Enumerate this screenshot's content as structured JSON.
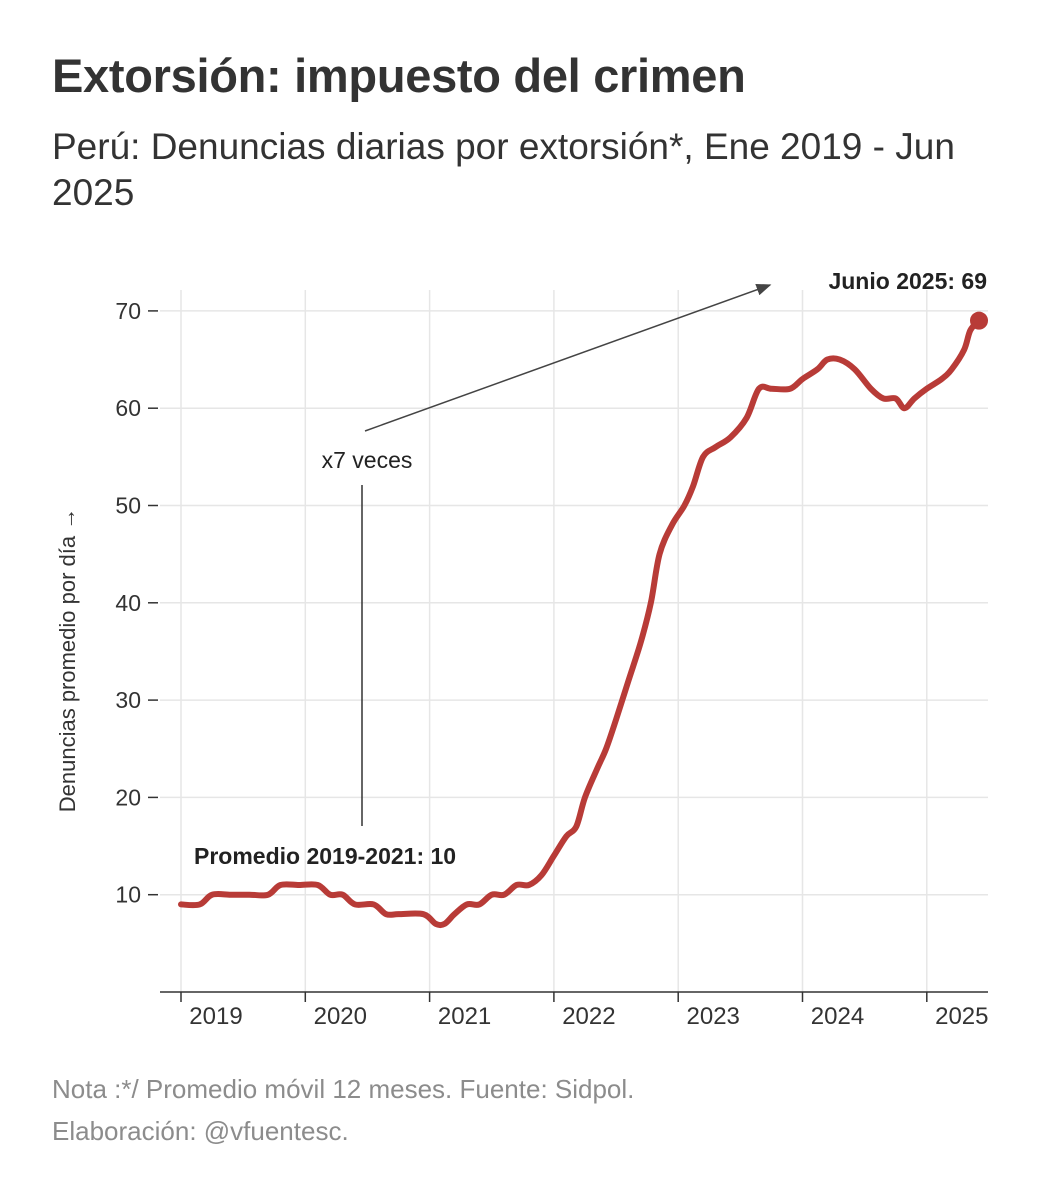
{
  "title": "Extorsión: impuesto del crimen",
  "subtitle": "Perú: Denuncias diarias por extorsión*, Ene 2019 - Jun 2025",
  "note_line1": "Nota :*/ Promedio móvil 12 meses. Fuente: Sidpol.",
  "note_line2": "Elaboración: @vfuentesc.",
  "colors": {
    "line": "#b83b37",
    "grid": "#e6e6e6",
    "text": "#333333",
    "note": "#8c8c8c"
  },
  "chart_data": {
    "type": "line",
    "title": "Extorsión: impuesto del crimen",
    "xlabel": "",
    "ylabel": "Denuncias promedio por día →",
    "ylim": [
      0,
      72
    ],
    "xlim": [
      2018.85,
      2025.5
    ],
    "yticks": [
      10,
      20,
      30,
      40,
      50,
      60,
      70
    ],
    "ytick_labels": [
      "10",
      "20",
      "30",
      "40",
      "50",
      "60",
      "70"
    ],
    "xticks": [
      2019,
      2020,
      2021,
      2022,
      2023,
      2024,
      2025
    ],
    "xtick_labels": [
      "2019",
      "2020",
      "2021",
      "2022",
      "2023",
      "2024",
      "2025"
    ],
    "grid": true,
    "series": [
      {
        "name": "Denuncias diarias por extorsión (promedio móvil 12 meses)",
        "x": [
          2019.0,
          2019.15,
          2019.25,
          2019.4,
          2019.55,
          2019.7,
          2019.8,
          2019.95,
          2020.1,
          2020.2,
          2020.3,
          2020.4,
          2020.55,
          2020.65,
          2020.75,
          2020.95,
          2021.05,
          2021.12,
          2021.2,
          2021.3,
          2021.4,
          2021.5,
          2021.6,
          2021.7,
          2021.8,
          2021.9,
          2022.0,
          2022.1,
          2022.18,
          2022.25,
          2022.35,
          2022.42,
          2022.5,
          2022.6,
          2022.7,
          2022.78,
          2022.85,
          2022.95,
          2023.05,
          2023.12,
          2023.2,
          2023.3,
          2023.42,
          2023.55,
          2023.65,
          2023.75,
          2023.9,
          2024.0,
          2024.12,
          2024.2,
          2024.3,
          2024.42,
          2024.55,
          2024.65,
          2024.75,
          2024.82,
          2024.9,
          2025.0,
          2025.12,
          2025.2,
          2025.3,
          2025.35,
          2025.42
        ],
        "y": [
          9,
          9,
          10,
          10,
          10,
          10,
          11,
          11,
          11,
          10,
          10,
          9,
          9,
          8,
          8,
          8,
          7,
          7,
          8,
          9,
          9,
          10,
          10,
          11,
          11,
          12,
          14,
          16,
          17,
          20,
          23,
          25,
          28,
          32,
          36,
          40,
          45,
          48,
          50,
          52,
          55,
          56,
          57,
          59,
          62,
          62,
          62,
          63,
          64,
          65,
          65,
          64,
          62,
          61,
          61,
          60,
          61,
          62,
          63,
          64,
          66,
          68,
          69
        ]
      }
    ],
    "annotations": [
      {
        "text": "Junio 2025: 69",
        "x": 2025.42,
        "y": 69
      },
      {
        "text": "x7 veces"
      },
      {
        "text": "Promedio 2019-2021: 10"
      }
    ]
  }
}
